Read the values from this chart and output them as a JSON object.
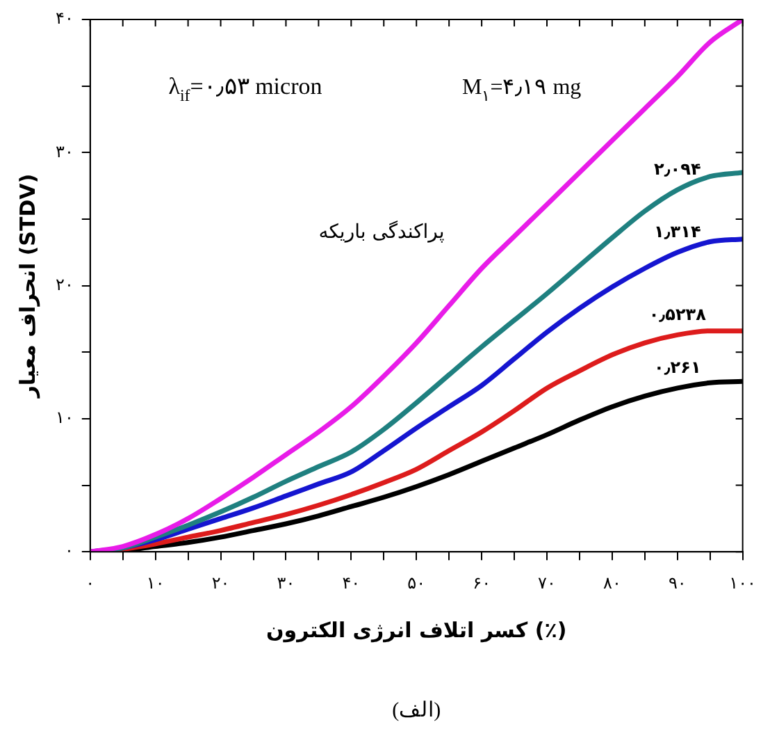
{
  "chart_data": {
    "type": "line",
    "xlabel": "کسر اتلاف انرژی الکترون (٪)",
    "ylabel": "انحراف معیار (STDV)",
    "annotations": [
      "λ$_{if}$=۰٫۵۳ micron",
      "M$_{۱}$=۴٫۱۹ mg",
      "پراکندگی باریکه",
      "(الف)"
    ],
    "x": [
      0,
      5,
      10,
      15,
      20,
      25,
      30,
      35,
      40,
      45,
      50,
      55,
      60,
      65,
      70,
      75,
      80,
      85,
      90,
      95,
      100
    ],
    "series": [
      {
        "color": "#e81ce8",
        "values": [
          0,
          0.4,
          1.3,
          2.5,
          4.0,
          5.6,
          7.3,
          9.0,
          10.9,
          13.2,
          15.7,
          18.5,
          21.3,
          23.7,
          26.1,
          28.5,
          30.9,
          33.3,
          35.7,
          38.3,
          40
        ]
      },
      {
        "name": "۲٫۰۹۴",
        "color": "#1f8080",
        "values": [
          0,
          0.3,
          1.1,
          2.0,
          3.0,
          4.1,
          5.3,
          6.4,
          7.5,
          9.2,
          11.2,
          13.3,
          15.4,
          17.4,
          19.4,
          21.5,
          23.6,
          25.6,
          27.2,
          28.2,
          28.5
        ]
      },
      {
        "name": "۱٫۳۱۴",
        "color": "#1515d0",
        "values": [
          0,
          0.3,
          0.9,
          1.7,
          2.5,
          3.3,
          4.2,
          5.1,
          6.0,
          7.6,
          9.3,
          10.9,
          12.5,
          14.5,
          16.5,
          18.3,
          19.9,
          21.3,
          22.5,
          23.3,
          23.5
        ]
      },
      {
        "name": "۰٫۵۲۳۸",
        "color": "#dd1c1c",
        "values": [
          0,
          0.2,
          0.6,
          1.1,
          1.6,
          2.2,
          2.8,
          3.5,
          4.3,
          5.2,
          6.2,
          7.6,
          9.0,
          10.6,
          12.3,
          13.6,
          14.8,
          15.7,
          16.3,
          16.6,
          16.6
        ]
      },
      {
        "name": "۰٫۲۶۱",
        "color": "#000000",
        "values": [
          0,
          0.1,
          0.4,
          0.7,
          1.1,
          1.6,
          2.1,
          2.7,
          3.4,
          4.1,
          4.9,
          5.8,
          6.8,
          7.8,
          8.8,
          9.9,
          10.9,
          11.7,
          12.3,
          12.7,
          12.8
        ]
      }
    ],
    "xlim": [
      0,
      100
    ],
    "xticks": [
      {
        "value": 0,
        "label": "۰"
      },
      {
        "value": 5,
        "label": null
      },
      {
        "value": 10,
        "label": "۱۰"
      },
      {
        "value": 15,
        "label": null
      },
      {
        "value": 20,
        "label": "۲۰"
      },
      {
        "value": 25,
        "label": null
      },
      {
        "value": 30,
        "label": "۳۰"
      },
      {
        "value": 35,
        "label": null
      },
      {
        "value": 40,
        "label": "۴۰"
      },
      {
        "value": 45,
        "label": null
      },
      {
        "value": 50,
        "label": "۵۰"
      },
      {
        "value": 55,
        "label": null
      },
      {
        "value": 60,
        "label": "۶۰"
      },
      {
        "value": 65,
        "label": null
      },
      {
        "value": 70,
        "label": "۷۰"
      },
      {
        "value": 75,
        "label": null
      },
      {
        "value": 80,
        "label": "۸۰"
      },
      {
        "value": 85,
        "label": null
      },
      {
        "value": 90,
        "label": "۹۰"
      },
      {
        "value": 95,
        "label": null
      },
      {
        "value": 100,
        "label": "۱۰۰"
      }
    ],
    "ylim": [
      0,
      40
    ],
    "yticks": [
      {
        "value": 0,
        "label": "۰"
      },
      {
        "value": 5,
        "label": null
      },
      {
        "value": 10,
        "label": "۱۰"
      },
      {
        "value": 15,
        "label": null
      },
      {
        "value": 20,
        "label": "۲۰"
      },
      {
        "value": 25,
        "label": null
      },
      {
        "value": 30,
        "label": "۳۰"
      },
      {
        "value": 35,
        "label": null
      },
      {
        "value": 40,
        "label": "۴۰"
      }
    ],
    "grid": false,
    "legend": false,
    "marker": "none",
    "line_style": "solid"
  }
}
